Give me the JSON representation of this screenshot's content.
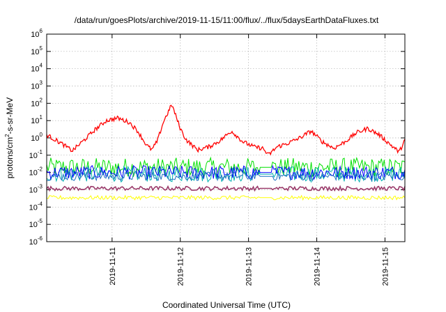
{
  "chart_data": {
    "type": "line",
    "title": "/data/run/goesPlots/archive/2019-11-15/11:00/flux/../flux/5daysEarthDataFluxes.txt",
    "xlabel": "Coordinated Universal Time (UTC)",
    "ylabel": {
      "base": "protons/cm",
      "sup": "2",
      "rest": "-s-sr-MeV"
    },
    "x_range": [
      "2019-11-10T01:00",
      "2019-11-15T07:00"
    ],
    "x_ticks": [
      "2019-11-11",
      "2019-11-12",
      "2019-11-13",
      "2019-11-14",
      "2019-11-15"
    ],
    "y_scale": "log",
    "ylim": [
      1e-06,
      1000000.0
    ],
    "y_ticks": [
      {
        "base": "10",
        "exp": "-6"
      },
      {
        "base": "10",
        "exp": "-5"
      },
      {
        "base": "10",
        "exp": "-4"
      },
      {
        "base": "10",
        "exp": "-3"
      },
      {
        "base": "10",
        "exp": "-2"
      },
      {
        "base": "10",
        "exp": "-1"
      },
      {
        "base": "10",
        "exp": "0"
      },
      {
        "base": "10",
        "exp": "1"
      },
      {
        "base": "10",
        "exp": "2"
      },
      {
        "base": "10",
        "exp": "3"
      },
      {
        "base": "10",
        "exp": "4"
      },
      {
        "base": "10",
        "exp": "5"
      },
      {
        "base": "10",
        "exp": "6"
      }
    ],
    "grid": true,
    "series": [
      {
        "color": "#ff0000",
        "x": [
          "2019-11-10T01:00",
          "2019-11-10T06:00",
          "2019-11-10T10:00",
          "2019-11-10T14:00",
          "2019-11-10T18:00",
          "2019-11-10T22:00",
          "2019-11-11T02:00",
          "2019-11-11T06:00",
          "2019-11-11T09:00",
          "2019-11-11T12:00",
          "2019-11-11T14:00",
          "2019-11-11T16:00",
          "2019-11-11T18:00",
          "2019-11-11T21:00",
          "2019-11-12T00:00",
          "2019-11-12T02:00",
          "2019-11-12T04:00",
          "2019-11-12T06:00",
          "2019-11-12T10:00",
          "2019-11-12T14:00",
          "2019-11-12T18:00",
          "2019-11-12T22:00",
          "2019-11-13T02:00",
          "2019-11-13T05:00",
          "2019-11-13T07:00",
          "2019-11-13T10:00",
          "2019-11-13T14:00",
          "2019-11-13T18:00",
          "2019-11-13T22:00",
          "2019-11-14T02:00",
          "2019-11-14T06:00",
          "2019-11-14T10:00",
          "2019-11-14T14:00",
          "2019-11-14T18:00",
          "2019-11-14T22:00",
          "2019-11-15T02:00",
          "2019-11-15T05:00",
          "2019-11-15T07:00"
        ],
        "values": [
          1.5,
          0.5,
          0.18,
          0.7,
          3.0,
          10,
          14,
          8,
          2.5,
          0.4,
          0.2,
          0.7,
          8,
          85,
          3.5,
          0.8,
          0.4,
          0.2,
          0.3,
          0.7,
          2.5,
          0.6,
          0.3,
          0.25,
          0.1,
          0.3,
          0.5,
          1.0,
          2.5,
          0.6,
          0.25,
          0.6,
          2.0,
          3.5,
          1.5,
          0.4,
          0.15,
          0.8
        ]
      },
      {
        "color": "#00e000",
        "level": 0.02,
        "spread": 0.55
      },
      {
        "color": "#00b0b0",
        "level": 0.008,
        "spread": 0.45
      },
      {
        "color": "#0000ff",
        "level": 0.01,
        "spread": 0.4
      },
      {
        "color": "#1a6fc0",
        "level": 0.006,
        "spread": 0.25
      },
      {
        "color": "#9a3a6a",
        "level": 0.0012,
        "spread": 0.12
      },
      {
        "color": "#ffff00",
        "level": 0.00035,
        "spread": 0.12
      }
    ]
  }
}
